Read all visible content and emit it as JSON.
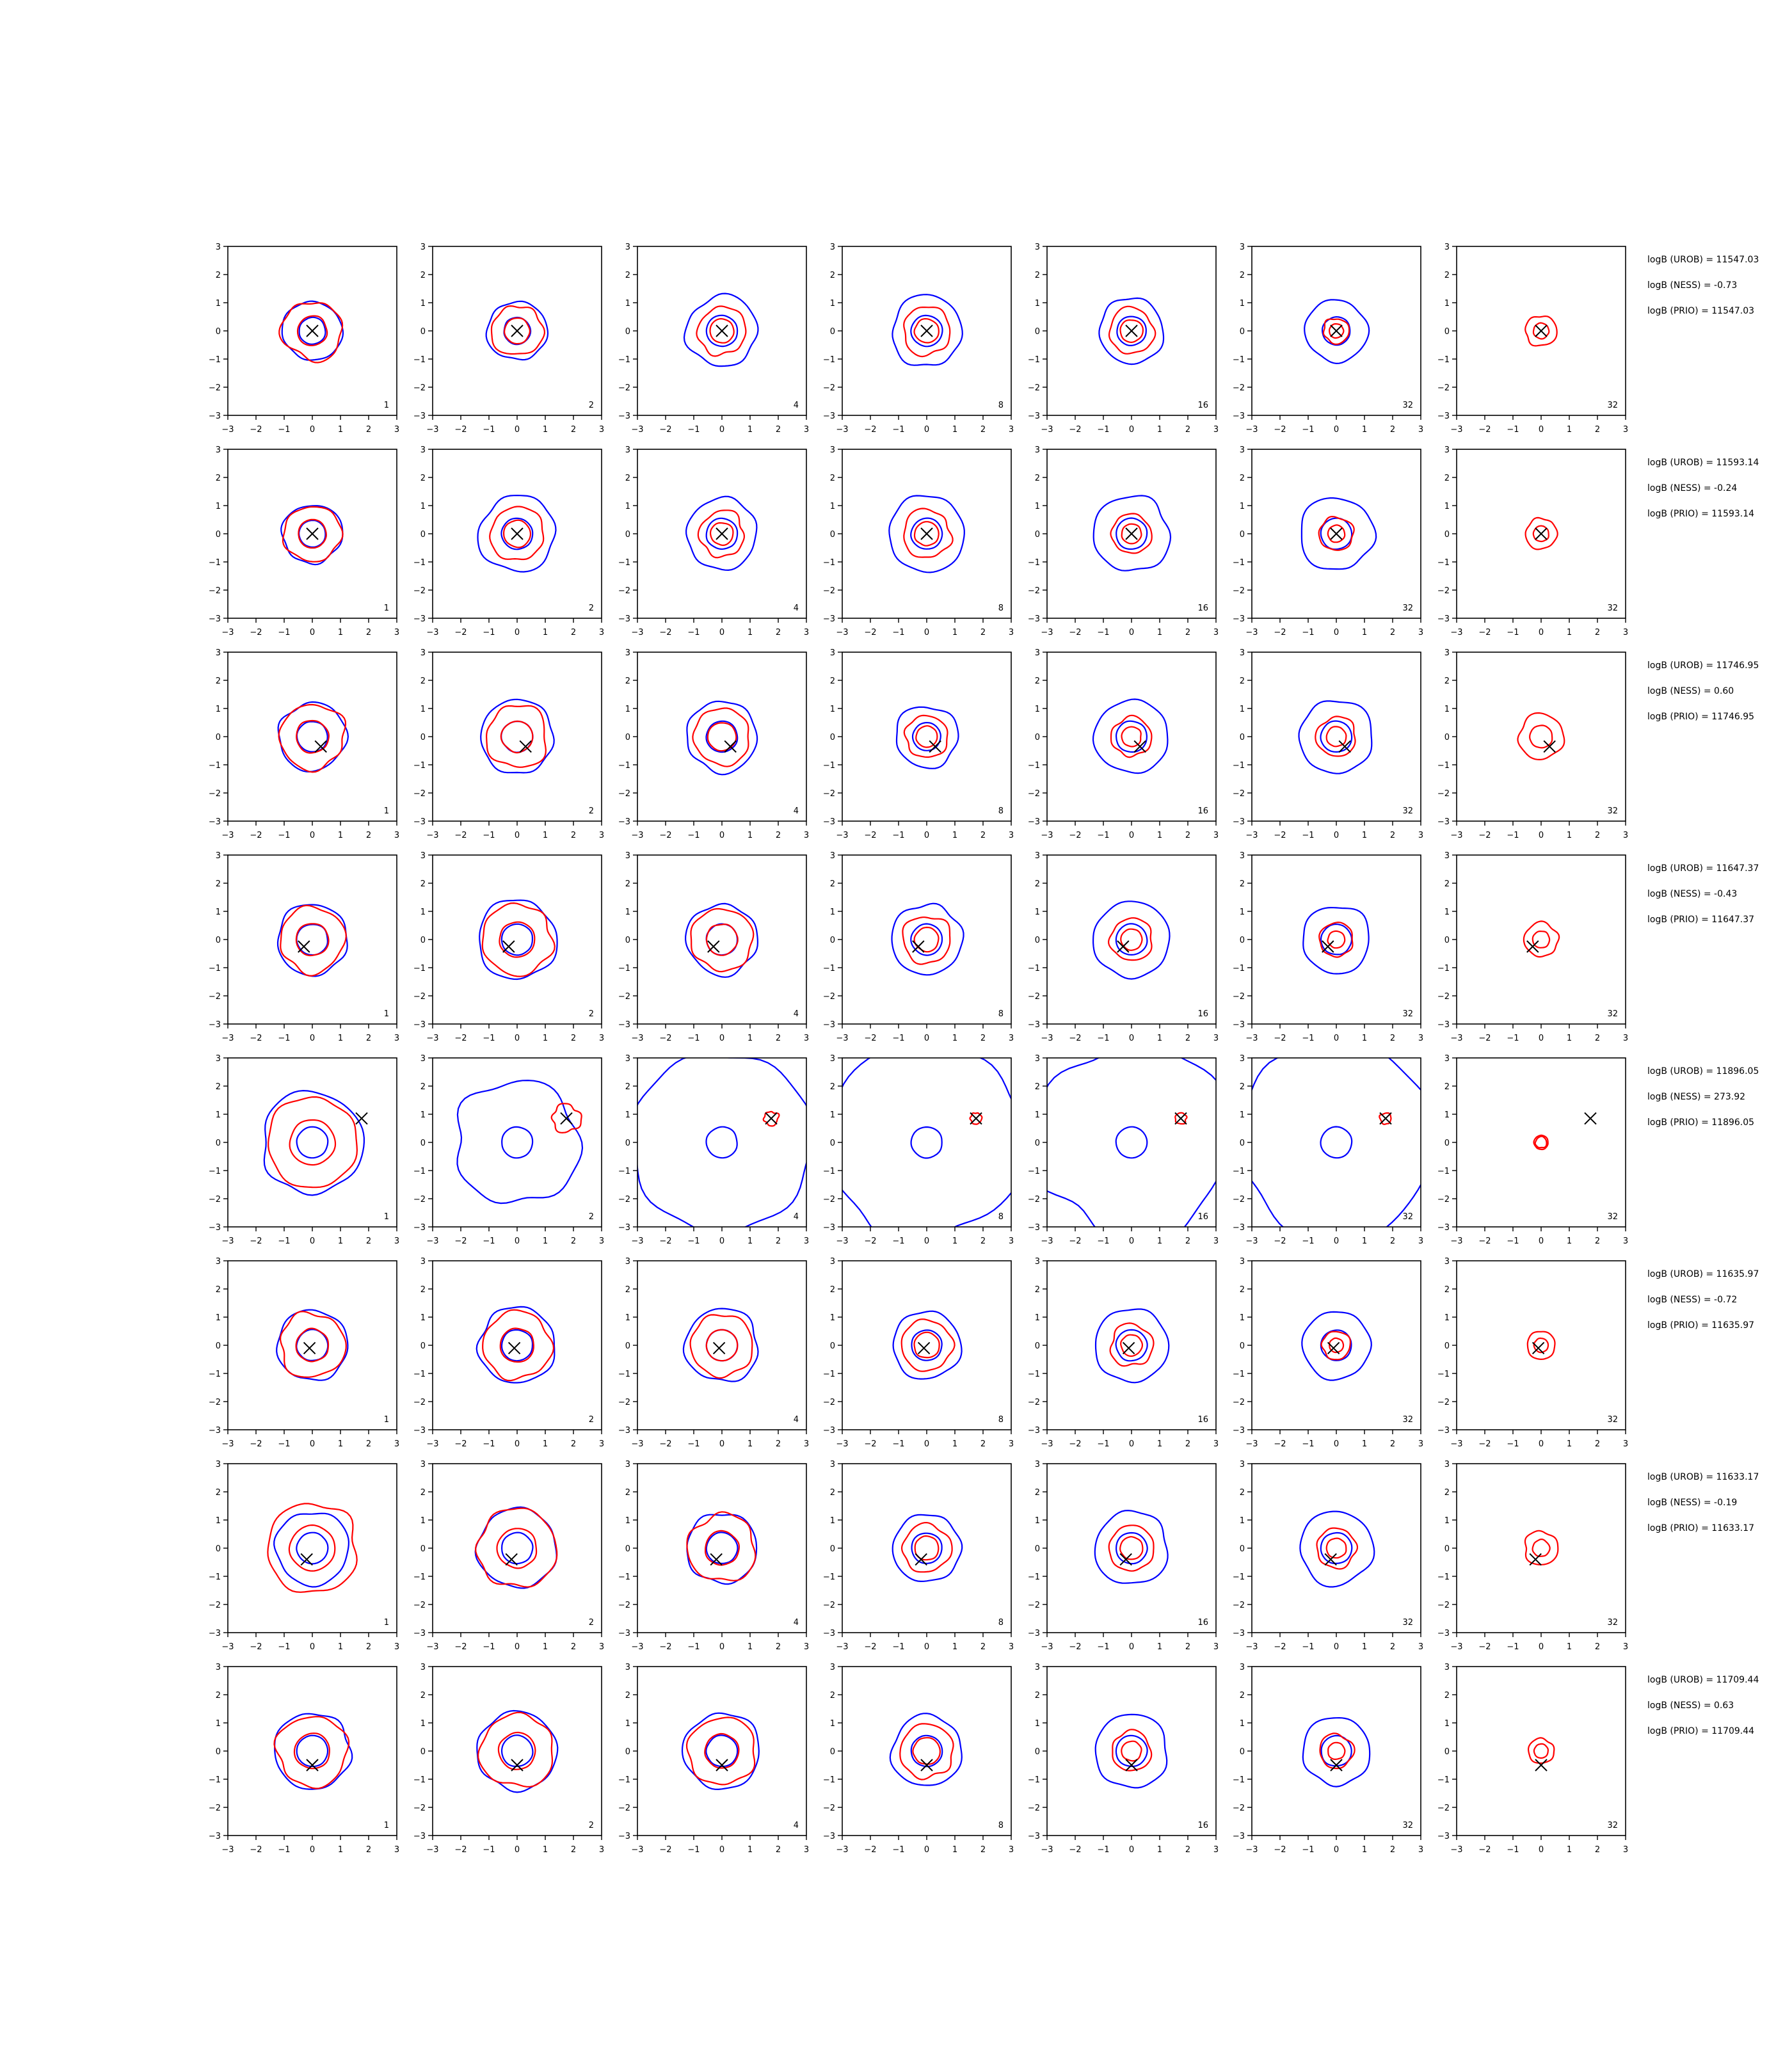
{
  "chart_data": {
    "type": "contour",
    "description_free": true,
    "columns": [
      "1",
      "2",
      "4",
      "8",
      "16",
      "32",
      "32"
    ],
    "xlim": [
      -3,
      3
    ],
    "ylim": [
      -3,
      3
    ],
    "xticks": [
      "−3",
      "−2",
      "−1",
      "0",
      "1",
      "2",
      "3"
    ],
    "yticks": [
      "3",
      "2",
      "1",
      "0",
      "−1",
      "−2",
      "−3"
    ],
    "series_colors": {
      "outer": "#0000ff",
      "inner": "#ff0000",
      "marker": "#000000"
    },
    "rows": [
      {
        "marker": [
          0.0,
          0.0
        ],
        "blue": [
          1.05,
          1.05,
          1.25,
          1.25,
          1.15,
          1.1,
          null
        ],
        "red": [
          1.05,
          0.9,
          0.85,
          0.85,
          0.8,
          0.45,
          0.55
        ],
        "stats": [
          "logB (UROB) = 11547.03",
          "logB (NESS) = -0.73",
          "logB (PRIO) = 11547.03"
        ]
      },
      {
        "marker": [
          0.0,
          0.0
        ],
        "blue": [
          1.05,
          1.35,
          1.25,
          1.35,
          1.35,
          1.3,
          null
        ],
        "red": [
          1.0,
          0.95,
          0.8,
          0.85,
          0.7,
          0.6,
          0.55
        ],
        "stats": [
          "logB (UROB) = 11593.14",
          "logB (NESS) = -0.24",
          "logB (PRIO) = 11593.14"
        ]
      },
      {
        "marker": [
          0.3,
          -0.35
        ],
        "blue": [
          1.2,
          1.3,
          1.25,
          1.1,
          1.3,
          1.3,
          null
        ],
        "red": [
          1.15,
          1.1,
          1.0,
          0.75,
          0.7,
          0.7,
          0.8
        ],
        "stats": [
          "logB (UROB) = 11746.95",
          "logB (NESS) = 0.60",
          "logB (PRIO) = 11746.95"
        ]
      },
      {
        "marker": [
          -0.3,
          -0.25
        ],
        "blue": [
          1.25,
          1.4,
          1.25,
          1.25,
          1.35,
          1.2,
          null
        ],
        "red": [
          1.15,
          1.25,
          1.1,
          0.85,
          0.75,
          0.6,
          0.6
        ],
        "stats": [
          "logB (UROB) = 11647.37",
          "logB (NESS) = -0.43",
          "logB (PRIO) = 11647.37"
        ]
      },
      {
        "marker": [
          1.75,
          0.85
        ],
        "blue": [
          1.8,
          2.2,
          3.2,
          3.5,
          3.5,
          3.5,
          null
        ],
        "red": [
          1.6,
          0.5,
          0.25,
          0.2,
          0.2,
          0.2,
          0.2
        ],
        "stats": [
          "logB (UROB) = 11896.05",
          "logB (NESS) = 273.92",
          "logB (PRIO) = 11896.05"
        ]
      },
      {
        "marker": [
          -0.1,
          -0.1
        ],
        "blue": [
          1.25,
          1.35,
          1.3,
          1.2,
          1.3,
          1.2,
          null
        ],
        "red": [
          1.15,
          1.2,
          1.1,
          0.9,
          0.75,
          0.5,
          0.5
        ],
        "stats": [
          "logB (UROB) = 11635.97",
          "logB (NESS) = -0.72",
          "logB (PRIO) = 11635.97"
        ]
      },
      {
        "marker": [
          -0.2,
          -0.4
        ],
        "blue": [
          1.3,
          1.4,
          1.25,
          1.2,
          1.3,
          1.3,
          null
        ],
        "red": [
          1.6,
          1.4,
          1.2,
          0.85,
          0.8,
          0.7,
          0.6
        ],
        "stats": [
          "logB (UROB) = 11633.17",
          "logB (NESS) = -0.19",
          "logB (PRIO) = 11633.17"
        ]
      },
      {
        "marker": [
          0.0,
          -0.5
        ],
        "blue": [
          1.35,
          1.4,
          1.35,
          1.25,
          1.3,
          1.2,
          null
        ],
        "red": [
          1.25,
          1.3,
          1.2,
          0.95,
          0.7,
          0.6,
          0.45
        ],
        "stats": [
          "logB (UROB) = 11709.44",
          "logB (NESS) = 0.63",
          "logB (PRIO) = 11709.44"
        ]
      }
    ]
  }
}
